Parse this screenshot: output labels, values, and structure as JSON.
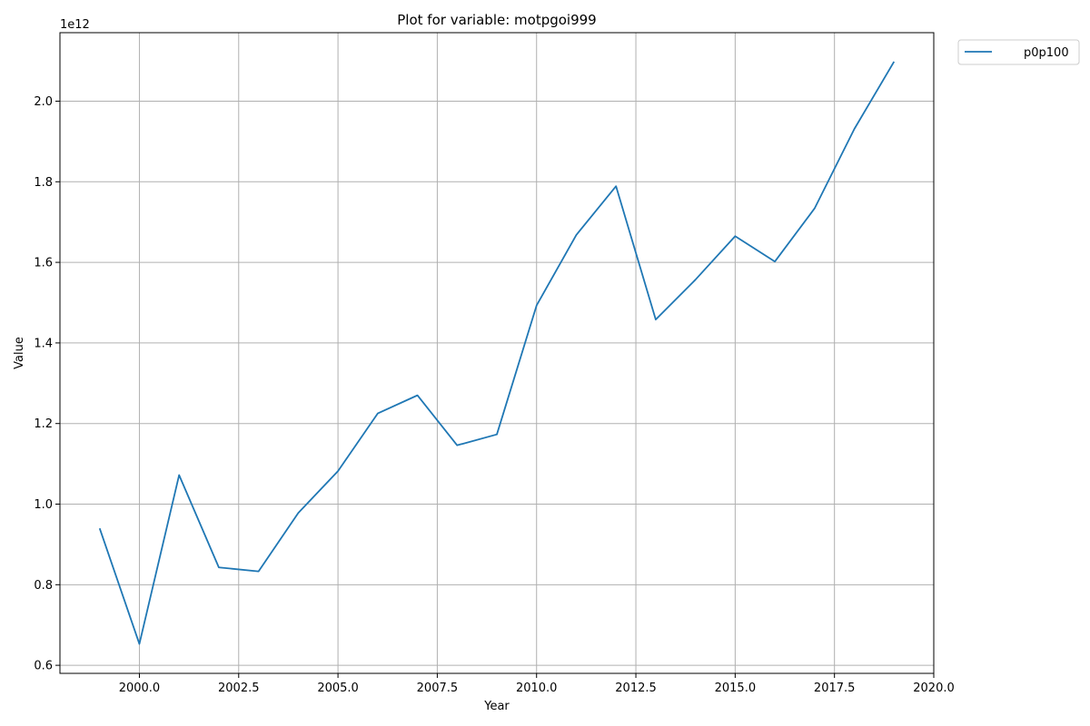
{
  "chart_data": {
    "type": "line",
    "title": "Plot for variable: motpgoi999",
    "xlabel": "Year",
    "ylabel": "Value",
    "offset_label": "1e12",
    "xlim": [
      1998.0,
      2020.0
    ],
    "ylim": [
      0.58,
      2.17
    ],
    "x_ticks": [
      2000.0,
      2002.5,
      2005.0,
      2007.5,
      2010.0,
      2012.5,
      2015.0,
      2017.5,
      2020.0
    ],
    "x_tick_labels": [
      "2000.0",
      "2002.5",
      "2005.0",
      "2007.5",
      "2010.0",
      "2012.5",
      "2015.0",
      "2017.5",
      "2020.0"
    ],
    "y_ticks": [
      0.6,
      0.8,
      1.0,
      1.2,
      1.4,
      1.6,
      1.8,
      2.0
    ],
    "y_tick_labels": [
      "0.6",
      "0.8",
      "1.0",
      "1.2",
      "1.4",
      "1.6",
      "1.8",
      "2.0"
    ],
    "grid": true,
    "legend_position": "outside-top-right",
    "x": [
      1999,
      2000,
      2001,
      2002,
      2003,
      2004,
      2005,
      2006,
      2007,
      2008,
      2009,
      2010,
      2011,
      2012,
      2013,
      2014,
      2015,
      2016,
      2017,
      2018,
      2019
    ],
    "series": [
      {
        "name": "p0p100",
        "color": "#1f77b4",
        "values": [
          0.94,
          0.653,
          1.072,
          0.843,
          0.833,
          0.978,
          1.082,
          1.225,
          1.27,
          1.146,
          1.173,
          1.493,
          1.668,
          1.789,
          1.458,
          1.557,
          1.665,
          1.602,
          1.734,
          1.931,
          2.098
        ]
      }
    ]
  }
}
